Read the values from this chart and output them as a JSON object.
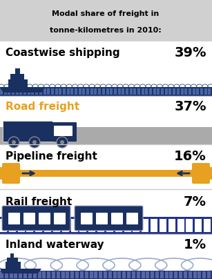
{
  "title_line1": "Modal share of freight in",
  "title_line2": "tonne-kilometres in 2010:",
  "dark_navy": "#1a3060",
  "gold": "#E8A020",
  "gray": "#aaaaaa",
  "wave_blue": "#6699bb",
  "bg": "#ffffff",
  "title_bg": "#d0d0d0",
  "sections": [
    {
      "label": "Coastwise shipping",
      "value": "39%",
      "color": "black"
    },
    {
      "label": "Road freight",
      "value": "37%",
      "color": "#E8A020"
    },
    {
      "label": "Pipeline freight",
      "value": "16%",
      "color": "black"
    },
    {
      "label": "Rail freight",
      "value": "7%",
      "color": "black"
    },
    {
      "label": "Inland waterway",
      "value": "1%",
      "color": "black"
    }
  ]
}
